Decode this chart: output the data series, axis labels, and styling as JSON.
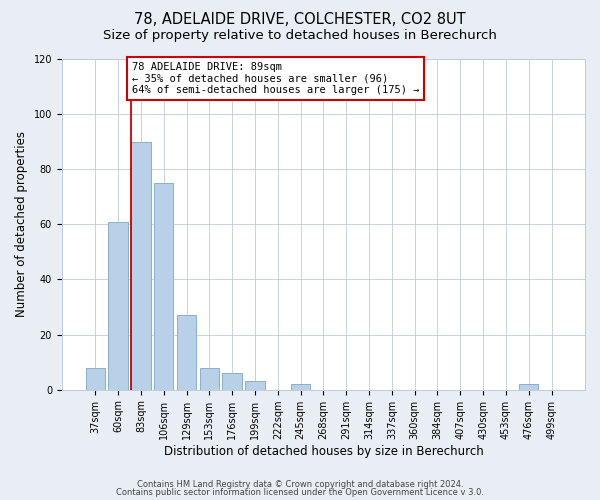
{
  "title_line1": "78, ADELAIDE DRIVE, COLCHESTER, CO2 8UT",
  "title_line2": "Size of property relative to detached houses in Berechurch",
  "xlabel": "Distribution of detached houses by size in Berechurch",
  "ylabel": "Number of detached properties",
  "bar_labels": [
    "37sqm",
    "60sqm",
    "83sqm",
    "106sqm",
    "129sqm",
    "153sqm",
    "176sqm",
    "199sqm",
    "222sqm",
    "245sqm",
    "268sqm",
    "291sqm",
    "314sqm",
    "337sqm",
    "360sqm",
    "384sqm",
    "407sqm",
    "430sqm",
    "453sqm",
    "476sqm",
    "499sqm"
  ],
  "bar_values": [
    8,
    61,
    90,
    75,
    27,
    8,
    6,
    3,
    0,
    2,
    0,
    0,
    0,
    0,
    0,
    0,
    0,
    0,
    0,
    2,
    0
  ],
  "bar_color": "#b8d0e8",
  "bar_edge_color": "#8ab0cc",
  "ylim": [
    0,
    120
  ],
  "yticks": [
    0,
    20,
    40,
    60,
    80,
    100,
    120
  ],
  "property_line_bar_index": 2,
  "property_line_color": "#cc0000",
  "annotation_title": "78 ADELAIDE DRIVE: 89sqm",
  "annotation_line1": "← 35% of detached houses are smaller (96)",
  "annotation_line2": "64% of semi-detached houses are larger (175) →",
  "annotation_box_color": "#ffffff",
  "annotation_box_edge_color": "#cc0000",
  "footer_line1": "Contains HM Land Registry data © Crown copyright and database right 2024.",
  "footer_line2": "Contains public sector information licensed under the Open Government Licence v 3.0.",
  "background_color": "#e8eef4",
  "plot_background_color": "#ffffff",
  "grid_color": "#c0ccd8",
  "title_fontsize": 10.5,
  "subtitle_fontsize": 9.5,
  "axis_label_fontsize": 8.5,
  "tick_fontsize": 7,
  "footer_fontsize": 6,
  "annotation_fontsize": 7.5
}
